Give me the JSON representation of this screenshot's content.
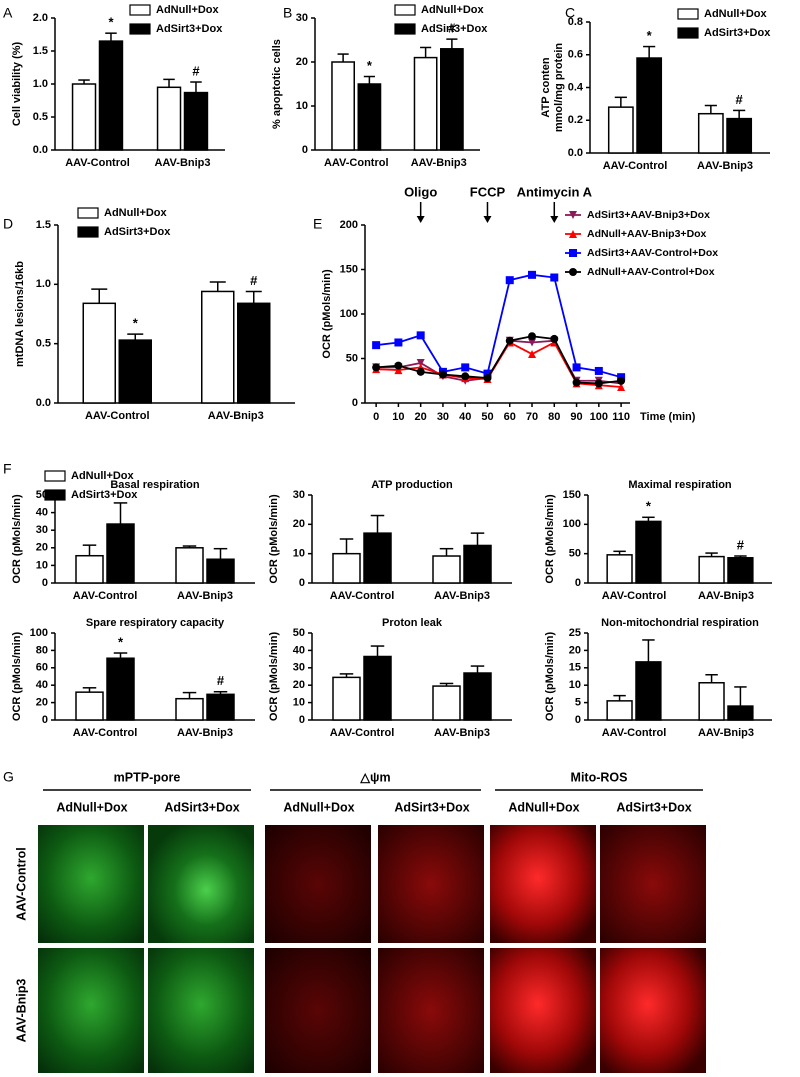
{
  "chart_data": [
    {
      "type": "bar",
      "panel": "A",
      "ylabel": "Cell viability (%)",
      "categories": [
        "AAV-Control",
        "AAV-Bnip3"
      ],
      "series": [
        {
          "name": "AdNull+Dox",
          "color": "#ffffff",
          "values": [
            1.0,
            0.95
          ],
          "errors": [
            0.06,
            0.12
          ]
        },
        {
          "name": "AdSirt3+Dox",
          "color": "#000000",
          "values": [
            1.65,
            0.87
          ],
          "errors": [
            0.12,
            0.16
          ]
        }
      ],
      "ylim": [
        0,
        2
      ],
      "yticks": [
        {
          "value": 0,
          "label": "0.0"
        },
        0.5,
        {
          "value": 1,
          "label": "1.0"
        },
        1.5,
        {
          "value": 2,
          "label": "2.0"
        }
      ],
      "annotations": [
        {
          "text": "*",
          "category": 0,
          "series": 1
        },
        {
          "text": "#",
          "category": 1,
          "series": 1
        }
      ]
    },
    {
      "type": "bar",
      "panel": "B",
      "ylabel": "% apoptotic cells",
      "categories": [
        "AAV-Control",
        "AAV-Bnip3"
      ],
      "series": [
        {
          "name": "AdNull+Dox",
          "color": "#ffffff",
          "values": [
            20,
            21
          ],
          "errors": [
            1.8,
            2.3
          ]
        },
        {
          "name": "AdSirt3+Dox",
          "color": "#000000",
          "values": [
            15,
            23
          ],
          "errors": [
            1.7,
            2.2
          ]
        }
      ],
      "ylim": [
        0,
        30
      ],
      "yticks": [
        0,
        10,
        20,
        30
      ],
      "annotations": [
        {
          "text": "*",
          "category": 0,
          "series": 1
        },
        {
          "text": "#",
          "category": 1,
          "series": 1
        }
      ]
    },
    {
      "type": "bar",
      "panel": "C",
      "ylabel": [
        "ATP conten",
        "mmol/mg protein"
      ],
      "categories": [
        "AAV-Control",
        "AAV-Bnip3"
      ],
      "series": [
        {
          "name": "AdNull+Dox",
          "color": "#ffffff",
          "values": [
            0.28,
            0.24
          ],
          "errors": [
            0.06,
            0.05
          ]
        },
        {
          "name": "AdSirt3+Dox",
          "color": "#000000",
          "values": [
            0.58,
            0.21
          ],
          "errors": [
            0.07,
            0.05
          ]
        }
      ],
      "ylim": [
        0,
        0.8
      ],
      "yticks": [
        {
          "value": 0,
          "label": "0.0"
        },
        0.2,
        0.4,
        0.6,
        0.8
      ],
      "annotations": [
        {
          "text": "*",
          "category": 0,
          "series": 1
        },
        {
          "text": "#",
          "category": 1,
          "series": 1
        }
      ]
    },
    {
      "type": "bar",
      "panel": "D",
      "ylabel": "mtDNA lesions/16kb",
      "categories": [
        "AAV-Control",
        "AAV-Bnip3"
      ],
      "series": [
        {
          "name": "AdNull+Dox",
          "color": "#ffffff",
          "values": [
            0.84,
            0.94
          ],
          "errors": [
            0.12,
            0.08
          ]
        },
        {
          "name": "AdSirt3+Dox",
          "color": "#000000",
          "values": [
            0.53,
            0.84
          ],
          "errors": [
            0.05,
            0.1
          ]
        }
      ],
      "ylim": [
        0,
        1.5
      ],
      "yticks": [
        {
          "value": 0,
          "label": "0.0"
        },
        0.5,
        {
          "value": 1,
          "label": "1.0"
        },
        1.5
      ],
      "annotations": [
        {
          "text": "*",
          "category": 0,
          "series": 1
        },
        {
          "text": "#",
          "category": 1,
          "series": 1
        }
      ]
    },
    {
      "type": "line",
      "panel": "E",
      "ylabel": "OCR (pMols/min)",
      "xlabel": "Time (min)",
      "x": [
        0,
        10,
        20,
        30,
        40,
        50,
        60,
        70,
        80,
        90,
        100,
        110
      ],
      "series": [
        {
          "name": "AdSirt3+AAV-Bnip3+Dox",
          "color": "#8b1a5a",
          "marker": "v",
          "values": [
            40,
            40,
            45,
            30,
            25,
            28,
            70,
            68,
            70,
            25,
            25,
            22
          ]
        },
        {
          "name": "AdNull+AAV-Bnip3+Dox",
          "color": "#ff0000",
          "marker": "^",
          "values": [
            38,
            37,
            40,
            32,
            28,
            27,
            68,
            55,
            68,
            22,
            20,
            18
          ]
        },
        {
          "name": "AdSirt3+AAV-Control+Dox",
          "color": "#0000ff",
          "marker": "s",
          "values": [
            65,
            68,
            76,
            35,
            40,
            33,
            138,
            144,
            141,
            40,
            36,
            29
          ]
        },
        {
          "name": "AdNull+AAV-Control+Dox",
          "color": "#000000",
          "marker": "o",
          "values": [
            40,
            42,
            35,
            32,
            30,
            28,
            70,
            75,
            72,
            23,
            22,
            25
          ]
        }
      ],
      "xlim": [
        -5,
        114
      ],
      "xticks": [
        0,
        10,
        20,
        30,
        40,
        50,
        60,
        70,
        80,
        90,
        100,
        110
      ],
      "ylim": [
        0,
        200
      ],
      "yticks": [
        0,
        50,
        100,
        150,
        200
      ],
      "annotations": [
        {
          "text": "Oligo",
          "x": 20
        },
        {
          "text": "FCCP",
          "x": 50
        },
        {
          "text": "Antimycin A",
          "x": 80
        }
      ]
    },
    {
      "type": "bar",
      "panel": "F",
      "title": "Basal respiration",
      "ylabel": "OCR (pMols/min)",
      "categories": [
        "AAV-Control",
        "AAV-Bnip3"
      ],
      "series": [
        {
          "name": "AdNull+Dox",
          "color": "#ffffff",
          "values": [
            15.5,
            20
          ],
          "errors": [
            6,
            1
          ]
        },
        {
          "name": "AdSirt3+Dox",
          "color": "#000000",
          "values": [
            33.5,
            13.5
          ],
          "errors": [
            12,
            6
          ]
        }
      ],
      "ylim": [
        0,
        50
      ],
      "yticks": [
        0,
        10,
        20,
        30,
        40,
        50
      ]
    },
    {
      "type": "bar",
      "title": "ATP production",
      "ylabel": "OCR (pMols/min)",
      "categories": [
        "AAV-Control",
        "AAV-Bnip3"
      ],
      "series": [
        {
          "color": "#ffffff",
          "values": [
            10,
            9.2
          ],
          "errors": [
            5,
            2.5
          ]
        },
        {
          "color": "#000000",
          "values": [
            17,
            12.8
          ],
          "errors": [
            6,
            4.2
          ]
        }
      ],
      "ylim": [
        0,
        30
      ],
      "yticks": [
        0,
        10,
        20,
        30
      ]
    },
    {
      "type": "bar",
      "title": "Maximal respiration",
      "ylabel": "OCR (pMols/min)",
      "categories": [
        "AAV-Control",
        "AAV-Bnip3"
      ],
      "series": [
        {
          "color": "#ffffff",
          "values": [
            48,
            45
          ],
          "errors": [
            6,
            6
          ]
        },
        {
          "color": "#000000",
          "values": [
            105,
            43
          ],
          "errors": [
            7,
            3
          ]
        }
      ],
      "ylim": [
        0,
        150
      ],
      "yticks": [
        0,
        50,
        100,
        150
      ],
      "annotations": [
        {
          "text": "*",
          "category": 0,
          "series": 1
        },
        {
          "text": "#",
          "category": 1,
          "series": 1
        }
      ]
    },
    {
      "type": "bar",
      "title": "Spare respiratory capacity",
      "ylabel": "OCR (pMols/min)",
      "categories": [
        "AAV-Control",
        "AAV-Bnip3"
      ],
      "series": [
        {
          "color": "#ffffff",
          "values": [
            32,
            24.5
          ],
          "errors": [
            5,
            7
          ]
        },
        {
          "color": "#000000",
          "values": [
            71,
            29.5
          ],
          "errors": [
            6,
            3
          ]
        }
      ],
      "ylim": [
        0,
        100
      ],
      "yticks": [
        0,
        20,
        40,
        60,
        80,
        100
      ],
      "annotations": [
        {
          "text": "*",
          "category": 0,
          "series": 1
        },
        {
          "text": "#",
          "category": 1,
          "series": 1
        }
      ]
    },
    {
      "type": "bar",
      "title": "Proton leak",
      "ylabel": "OCR (pMols/min)",
      "categories": [
        "AAV-Control",
        "AAV-Bnip3"
      ],
      "series": [
        {
          "color": "#ffffff",
          "values": [
            24.5,
            19.5
          ],
          "errors": [
            2,
            1.5
          ]
        },
        {
          "color": "#000000",
          "values": [
            36.5,
            27
          ],
          "errors": [
            6,
            4
          ]
        }
      ],
      "ylim": [
        0,
        50
      ],
      "yticks": [
        0,
        10,
        20,
        30,
        40,
        50
      ]
    },
    {
      "type": "bar",
      "title": "Non-mitochondrial respiration",
      "ylabel": "OCR (pMols/min)",
      "categories": [
        "AAV-Control",
        "AAV-Bnip3"
      ],
      "series": [
        {
          "color": "#ffffff",
          "values": [
            5.5,
            10.7
          ],
          "errors": [
            1.5,
            2.3
          ]
        },
        {
          "color": "#000000",
          "values": [
            16.7,
            4
          ],
          "errors": [
            6.3,
            5.5
          ]
        }
      ],
      "ylim": [
        0,
        25
      ],
      "yticks": [
        0,
        5,
        10,
        15,
        20,
        25
      ]
    }
  ],
  "image_panel": {
    "panel": "G",
    "groups": [
      "mPTP-pore",
      "△ψm",
      "Mito-ROS"
    ],
    "conditions": [
      "AdNull+Dox",
      "AdSirt3+Dox",
      "AdNull+Dox",
      "AdSirt3+Dox",
      "AdNull+Dox",
      "AdSirt3+Dox"
    ],
    "rows": [
      "AAV-Control",
      "AAV-Bnip3"
    ]
  }
}
